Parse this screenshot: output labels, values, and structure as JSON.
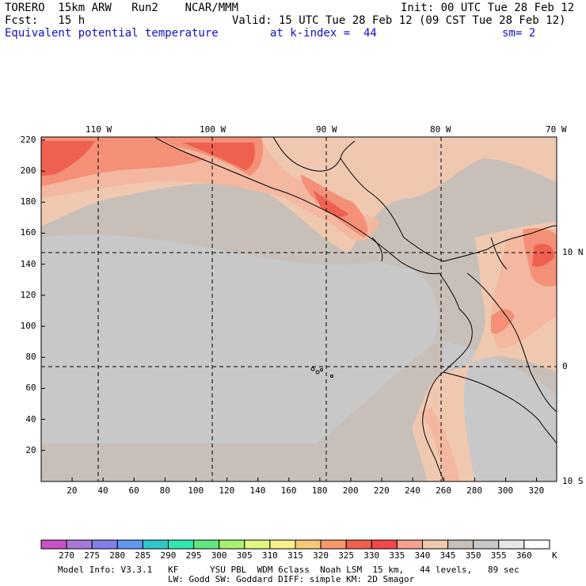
{
  "header": {
    "line1_left": "TORERO  15km ARW   Run2    NCAR/MMM",
    "line1_right": "Init: 00 UTC Tue 28 Feb 12",
    "line2_left": "Fcst:   15 h",
    "line2_right": "Valid: 15 UTC Tue 28 Feb 12 (09 CST Tue 28 Feb 12)",
    "line3_field": "Equivalent potential temperature",
    "line3_level": "at k-index =  44",
    "line3_smooth": "sm= 2"
  },
  "map": {
    "lon_labels": [
      "110 W",
      "100 W",
      "90 W",
      "80 W",
      "70 W"
    ],
    "lat_labels": [
      "10 N",
      "0",
      "10 S"
    ],
    "grid_x_ticks": [
      "20",
      "40",
      "60",
      "80",
      "100",
      "120",
      "140",
      "160",
      "180",
      "200",
      "220",
      "240",
      "260",
      "280",
      "300",
      "320"
    ],
    "grid_y_ticks": [
      "20",
      "40",
      "60",
      "80",
      "100",
      "120",
      "140",
      "160",
      "180",
      "200",
      "220"
    ],
    "colors": {
      "background_field": "#c8c0b8",
      "cool_field": "#c8c8c8",
      "warm_345": "#f0c8b0",
      "warm_340": "#f4b8a0",
      "warm_335": "#f49078",
      "warm_330": "#f06050",
      "coast_line": "#000000",
      "grid_line": "#000000"
    }
  },
  "colorbar": {
    "labels": [
      "270",
      "275",
      "280",
      "285",
      "290",
      "295",
      "300",
      "305",
      "310",
      "315",
      "320",
      "325",
      "330",
      "335",
      "340",
      "345",
      "350",
      "355",
      "360"
    ],
    "unit": "K",
    "colors": [
      "#c850c8",
      "#a878d8",
      "#8080e8",
      "#6098f0",
      "#30c8c8",
      "#30e8b0",
      "#60e880",
      "#a8f070",
      "#e0f880",
      "#f8f088",
      "#f8c878",
      "#f89868",
      "#f06050",
      "#f04848",
      "#f8a090",
      "#f0c8b0",
      "#c8c0b8",
      "#c8c8c8",
      "#e8e8e8",
      "#ffffff"
    ]
  },
  "footer": {
    "line1": "Model Info: V3.3.1   KF      YSU PBL  WDM 6class  Noah LSM  15 km,   44 levels,   89 sec",
    "line2": "LW: Godd SW: Goddard DIFF: simple KM: 2D Smagor"
  }
}
